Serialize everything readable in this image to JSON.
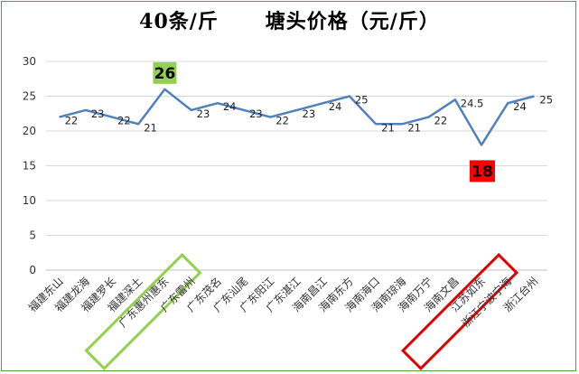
{
  "chart_data": {
    "type": "line",
    "title": "40条/斤      塘头价格（元/斤）",
    "categories": [
      "福建东山",
      "福建龙海",
      "福建罗长",
      "福建深土",
      "广东惠州惠东",
      "广东雷州",
      "广东茂名",
      "广东汕尾",
      "广东阳江",
      "广东湛江",
      "海南昌江",
      "海南东方",
      "海南海口",
      "海南琼海",
      "海南万宁",
      "海南文昌",
      "江苏如东",
      "浙江宁波宁海",
      "浙江台州"
    ],
    "series": [
      {
        "values": [
          22,
          23,
          22,
          21,
          26,
          23,
          24,
          23,
          22,
          23,
          24,
          25,
          21,
          21,
          22,
          24.5,
          18,
          24,
          25
        ]
      }
    ],
    "data_labels": [
      "22",
      "23",
      "22",
      "21",
      "26",
      "23",
      "24",
      "23",
      "22",
      "23",
      "24",
      "25",
      "21",
      "21",
      "22",
      "24.5",
      "18",
      "24",
      "25"
    ],
    "highlight": {
      "max_index": 4,
      "max_color": "#92d050",
      "min_index": 16,
      "min_color": "#ff0000"
    },
    "y_ticks": [
      "0",
      "5",
      "10",
      "15",
      "20",
      "25",
      "30"
    ],
    "ylim": [
      0,
      30
    ],
    "grid": true,
    "line_color": "#4f81bd",
    "grid_color": "#d9d9d9",
    "callout_colors": {
      "green_box": "#92d050",
      "red_box": "#e00000"
    }
  }
}
